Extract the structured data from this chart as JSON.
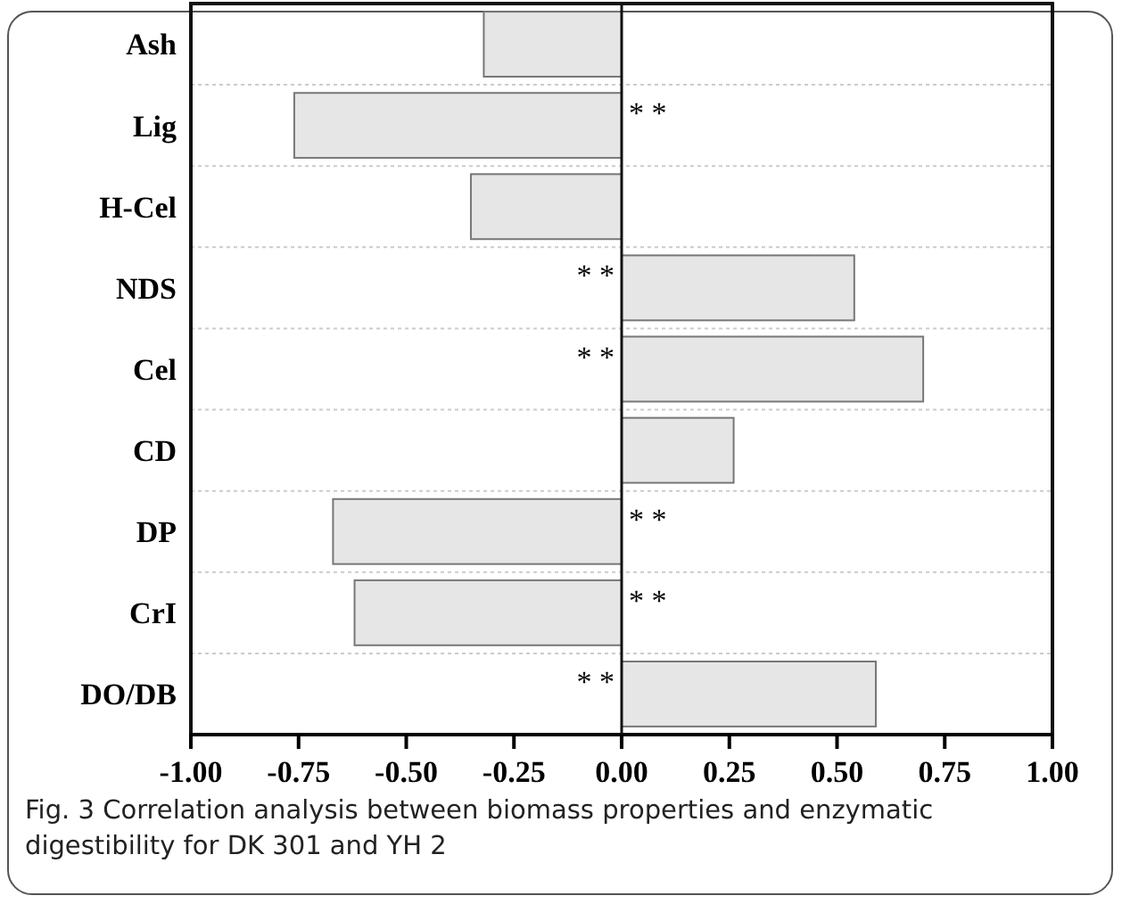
{
  "chart_data": {
    "type": "bar",
    "orientation": "horizontal",
    "categories": [
      "Ash",
      "Lig",
      "H-Cel",
      "NDS",
      "Cel",
      "CD",
      "DP",
      "CrI",
      "DO/DB"
    ],
    "values": [
      -0.32,
      -0.76,
      -0.35,
      0.54,
      0.7,
      0.26,
      -0.67,
      -0.62,
      0.59
    ],
    "value_labels": [
      null,
      "* *",
      null,
      "* *",
      "* *",
      null,
      "* *",
      "* *",
      "* *"
    ],
    "color": "#e6e6e6",
    "xlim": [
      -1,
      1
    ],
    "xticks": [
      {
        "value": -1,
        "label": "-1.00"
      },
      {
        "value": -0.75,
        "label": "-0.75"
      },
      {
        "value": -0.5,
        "label": "-0.50"
      },
      {
        "value": -0.25,
        "label": "-0.25"
      },
      {
        "value": 0,
        "label": "0.00"
      },
      {
        "value": 0.25,
        "label": "0.25"
      },
      {
        "value": 0.5,
        "label": "0.50"
      },
      {
        "value": 0.75,
        "label": "0.75"
      },
      {
        "value": 1,
        "label": "1.00"
      }
    ],
    "grid": "y",
    "annotations": [
      "Fig. 3  Correlation analysis between biomass properties and enzymatic digestibility for DK 301 and YH 2"
    ]
  }
}
